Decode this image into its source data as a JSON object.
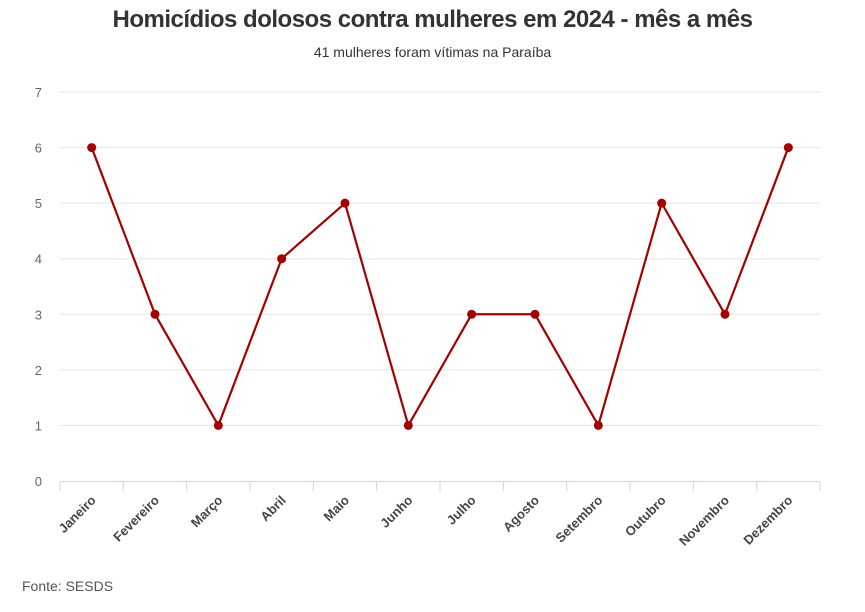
{
  "chart_data": {
    "type": "line",
    "title": "Homicídios dolosos contra mulheres em 2024 - mês a mês",
    "subtitle": "41 mulheres foram vítimas na Paraíba",
    "categories": [
      "Janeiro",
      "Fevereiro",
      "Março",
      "Abril",
      "Maio",
      "Junho",
      "Julho",
      "Agosto",
      "Setembro",
      "Outubro",
      "Novembro",
      "Dezembro"
    ],
    "series": [
      {
        "name": "Homicídios",
        "values": [
          6,
          3,
          1,
          4,
          5,
          1,
          3,
          3,
          1,
          5,
          3,
          6
        ],
        "color": "#a30000"
      }
    ],
    "yticks": [
      0,
      1,
      2,
      3,
      4,
      5,
      6,
      7
    ],
    "ylim": [
      0,
      7
    ],
    "xlabel": "",
    "ylabel": "",
    "grid": true,
    "legend": "none"
  },
  "source": "Fonte: SESDS"
}
